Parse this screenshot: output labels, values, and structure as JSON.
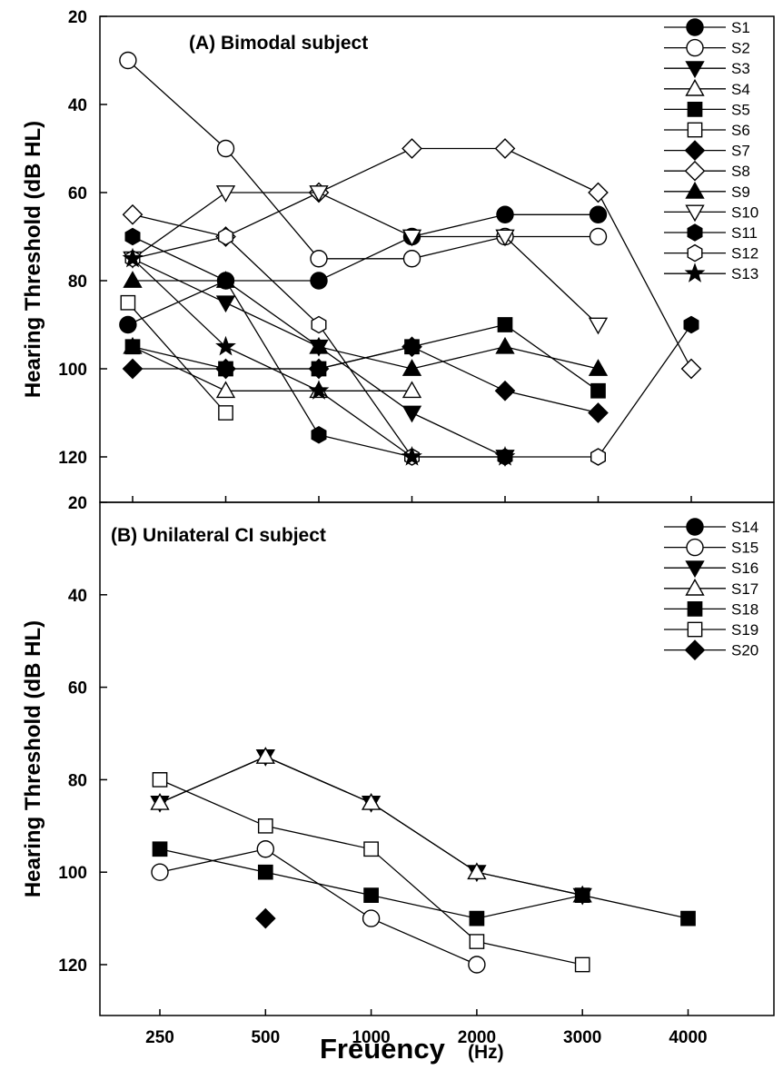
{
  "chart_data": {
    "type": "line",
    "xlabel": "Freuency",
    "xlabel_unit": "(Hz)",
    "x_tick_labels": [
      "250",
      "500",
      "1000",
      "2000",
      "3000",
      "4000"
    ],
    "legend_placement": "top-right",
    "panels": [
      {
        "title": "(A) Bimodal subject",
        "ylabel": "Hearing Threshold (dB HL)",
        "ylim": [
          20,
          125
        ],
        "y_inverted": true,
        "y_ticks": [
          20,
          40,
          60,
          80,
          100,
          120
        ],
        "series": [
          {
            "name": "S1",
            "marker": "circle-filled",
            "x": [
              0.95,
              2,
              3,
              4,
              5,
              6
            ],
            "y": [
              90,
              80,
              80,
              70,
              65,
              65
            ]
          },
          {
            "name": "S2",
            "marker": "circle-open",
            "x": [
              0.95,
              2,
              3,
              4,
              5,
              6
            ],
            "y": [
              30,
              50,
              75,
              75,
              70,
              70
            ]
          },
          {
            "name": "S3",
            "marker": "triangle-down-filled",
            "x": [
              1,
              2,
              3,
              4,
              5
            ],
            "y": [
              75,
              85,
              95,
              110,
              120
            ]
          },
          {
            "name": "S4",
            "marker": "triangle-up-open",
            "x": [
              1,
              2,
              3,
              4
            ],
            "y": [
              95,
              105,
              105,
              105
            ]
          },
          {
            "name": "S5",
            "marker": "square-filled",
            "x": [
              1,
              2,
              3,
              4,
              5,
              6
            ],
            "y": [
              95,
              100,
              100,
              95,
              90,
              105
            ]
          },
          {
            "name": "S6",
            "marker": "square-open",
            "x": [
              0.95,
              2
            ],
            "y": [
              85,
              110
            ]
          },
          {
            "name": "S7",
            "marker": "diamond-filled",
            "x": [
              1,
              2,
              3,
              4,
              5,
              6
            ],
            "y": [
              100,
              100,
              100,
              95,
              105,
              110
            ]
          },
          {
            "name": "S8",
            "marker": "diamond-open",
            "x": [
              1,
              2,
              3,
              4,
              5,
              6,
              7
            ],
            "y": [
              65,
              70,
              60,
              50,
              50,
              60,
              100
            ]
          },
          {
            "name": "S9",
            "marker": "triangle-up-filled",
            "x": [
              1,
              2,
              3,
              4,
              5,
              6
            ],
            "y": [
              80,
              80,
              95,
              100,
              95,
              100
            ]
          },
          {
            "name": "S10",
            "marker": "triangle-down-open",
            "x": [
              1,
              2,
              3,
              4,
              5,
              6
            ],
            "y": [
              75,
              60,
              60,
              70,
              70,
              90
            ]
          },
          {
            "name": "S11",
            "marker": "hexagon-filled",
            "x": [
              1,
              2,
              3,
              4,
              5,
              6,
              7
            ],
            "y": [
              70,
              80,
              115,
              120,
              120,
              120,
              90
            ]
          },
          {
            "name": "S12",
            "marker": "hexagon-open",
            "x": [
              1,
              2,
              3,
              4,
              6
            ],
            "y": [
              75,
              70,
              90,
              120,
              120
            ],
            "connected_points": 4
          },
          {
            "name": "S13",
            "marker": "star-filled",
            "x": [
              1,
              2,
              3,
              4,
              5
            ],
            "y": [
              75,
              95,
              105,
              120,
              120
            ]
          }
        ]
      },
      {
        "title": "(B) Unilateral CI subject",
        "ylabel": "Hearing Threshold (dB HL)",
        "ylim": [
          20,
          125
        ],
        "y_inverted": true,
        "y_ticks": [
          20,
          40,
          60,
          80,
          100,
          120
        ],
        "series": [
          {
            "name": "S14",
            "marker": "circle-filled",
            "x": [],
            "y": []
          },
          {
            "name": "S15",
            "marker": "circle-open",
            "x": [
              1,
              2,
              3,
              4
            ],
            "y": [
              100,
              95,
              110,
              120
            ]
          },
          {
            "name": "S16",
            "marker": "triangle-down-filled",
            "x": [
              1,
              2,
              3,
              4,
              5
            ],
            "y": [
              85,
              75,
              85,
              100,
              105
            ]
          },
          {
            "name": "S17",
            "marker": "triangle-up-open",
            "x": [
              1,
              2,
              3,
              4,
              5
            ],
            "y": [
              85,
              75,
              85,
              100,
              105
            ]
          },
          {
            "name": "S18",
            "marker": "square-filled",
            "x": [
              1,
              2,
              3,
              4,
              5,
              6
            ],
            "y": [
              95,
              100,
              105,
              110,
              105,
              110
            ]
          },
          {
            "name": "S19",
            "marker": "square-open",
            "x": [
              1,
              2,
              3,
              4,
              5
            ],
            "y": [
              80,
              90,
              95,
              115,
              120
            ]
          },
          {
            "name": "S20",
            "marker": "diamond-filled",
            "x": [
              2
            ],
            "y": [
              110
            ]
          }
        ]
      }
    ]
  }
}
